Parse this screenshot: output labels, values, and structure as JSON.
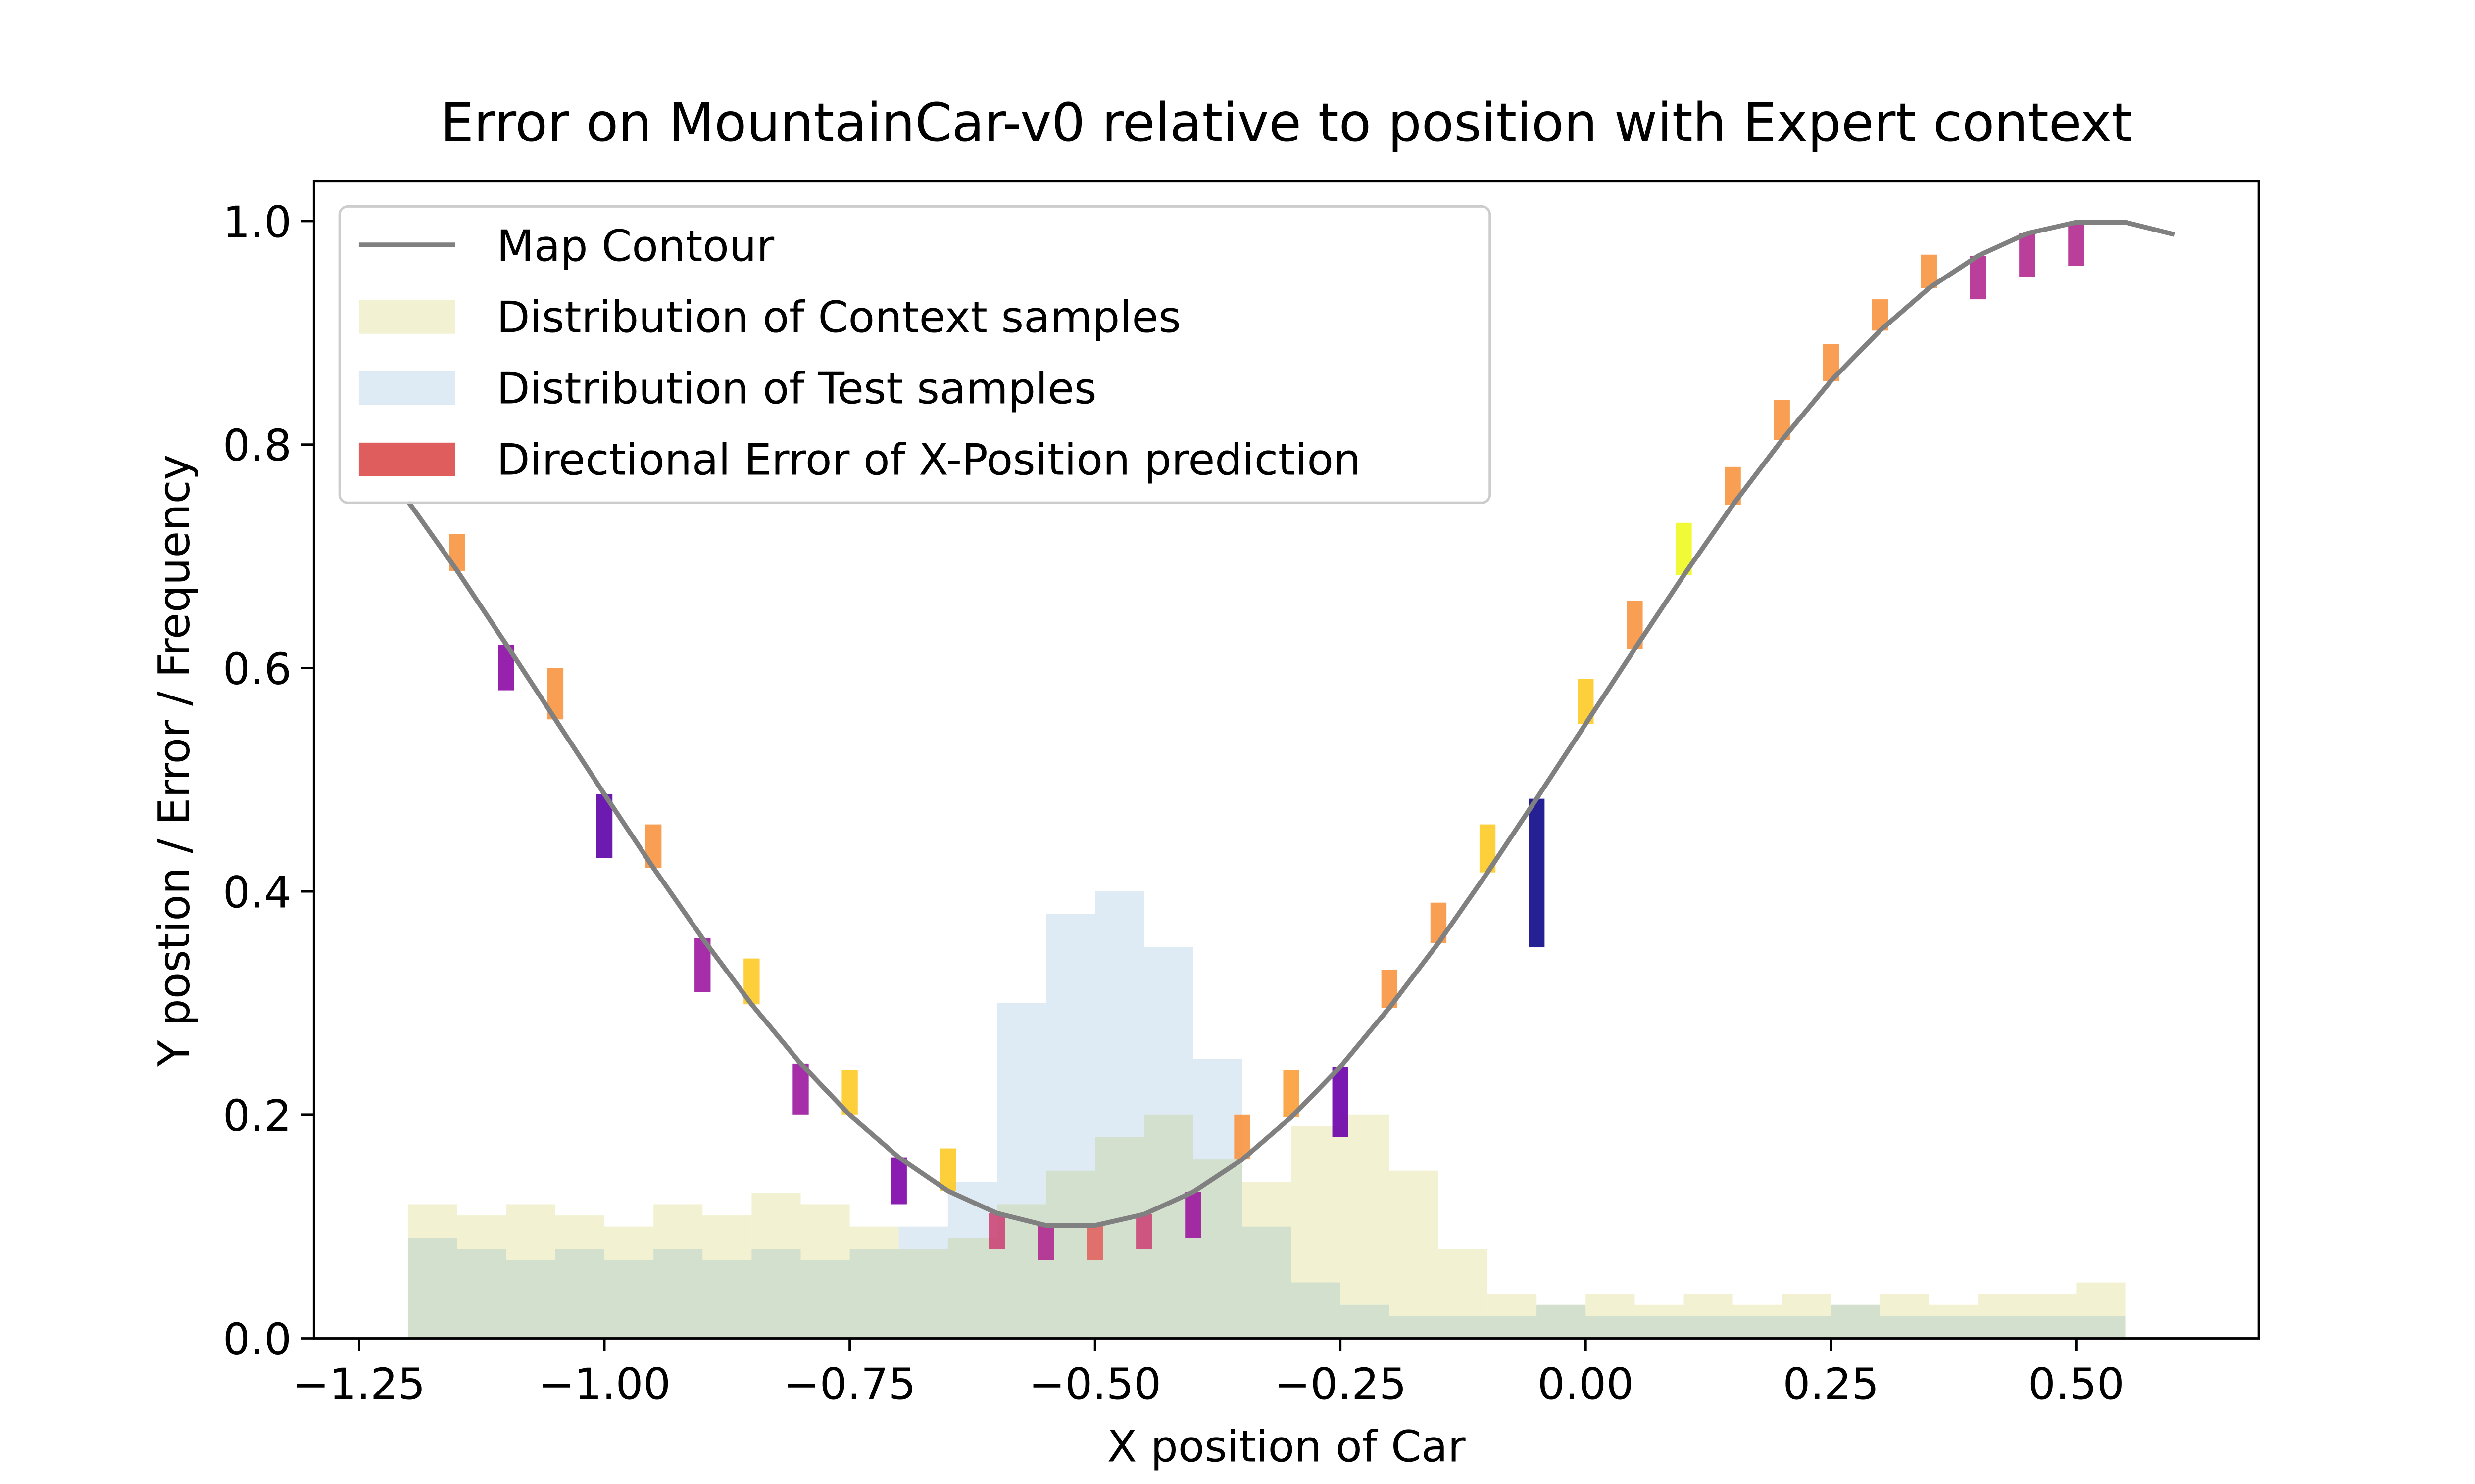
{
  "chart_data": {
    "type": "composite",
    "title": "Error on MountainCar-v0 relative to position with Expert context",
    "x_label": "X position of Car",
    "y_label": "Y postion / Error / Frequency",
    "xlim": [
      -1.296,
      0.686
    ],
    "ylim": [
      0,
      1.036
    ],
    "xticks": [
      {
        "value": -1.25,
        "label": "−1.25"
      },
      {
        "value": -1.0,
        "label": "−1.00"
      },
      {
        "value": -0.75,
        "label": "−0.75"
      },
      {
        "value": -0.5,
        "label": "−0.50"
      },
      {
        "value": -0.25,
        "label": "−0.25"
      },
      {
        "value": 0,
        "label": "0.00"
      },
      {
        "value": 0.25,
        "label": "0.25"
      },
      {
        "value": 0.5,
        "label": "0.50"
      }
    ],
    "yticks": [
      {
        "value": 0,
        "label": "0.0"
      },
      {
        "value": 0.2,
        "label": "0.2"
      },
      {
        "value": 0.4,
        "label": "0.4"
      },
      {
        "value": 0.6,
        "label": "0.6"
      },
      {
        "value": 0.8,
        "label": "0.8"
      },
      {
        "value": 1.0,
        "label": "1.0"
      }
    ],
    "legend_position": "upper left",
    "contour": {
      "name": "Map Contour",
      "color": "#808080",
      "x": [
        -1.2,
        -1.15,
        -1.1,
        -1.05,
        -1.0,
        -0.95,
        -0.9,
        -0.85,
        -0.8,
        -0.75,
        -0.7,
        -0.65,
        -0.6,
        -0.55,
        -0.5,
        -0.45,
        -0.4,
        -0.35,
        -0.3,
        -0.25,
        -0.2,
        -0.15,
        -0.1,
        -0.05,
        0,
        0.05,
        0.1,
        0.15,
        0.2,
        0.25,
        0.3,
        0.35,
        0.4,
        0.45,
        0.5,
        0.55,
        0.6
      ],
      "values": [
        0.749,
        0.687,
        0.621,
        0.554,
        0.487,
        0.421,
        0.358,
        0.299,
        0.246,
        0.2,
        0.162,
        0.132,
        0.112,
        0.101,
        0.101,
        0.111,
        0.131,
        0.16,
        0.198,
        0.243,
        0.296,
        0.354,
        0.417,
        0.483,
        0.55,
        0.617,
        0.683,
        0.746,
        0.804,
        0.857,
        0.902,
        0.94,
        0.969,
        0.989,
        0.999,
        0.999,
        0.988
      ]
    },
    "histograms": [
      {
        "name": "Distribution of Context samples",
        "color": "#bcbd22",
        "opacity": 0.2,
        "bins": [
          -1.2,
          -1.15,
          -1.1,
          -1.05,
          -1.0,
          -0.95,
          -0.9,
          -0.85,
          -0.8,
          -0.75,
          -0.7,
          -0.65,
          -0.6,
          -0.55,
          -0.5,
          -0.45,
          -0.4,
          -0.35,
          -0.3,
          -0.25,
          -0.2,
          -0.15,
          -0.1,
          -0.05,
          0,
          0.05,
          0.1,
          0.15,
          0.2,
          0.25,
          0.3,
          0.35,
          0.4,
          0.45,
          0.5,
          0.55
        ],
        "values": [
          0.12,
          0.11,
          0.12,
          0.11,
          0.1,
          0.12,
          0.11,
          0.13,
          0.12,
          0.1,
          0.08,
          0.09,
          0.12,
          0.15,
          0.18,
          0.2,
          0.16,
          0.14,
          0.19,
          0.2,
          0.15,
          0.08,
          0.04,
          0.03,
          0.04,
          0.03,
          0.04,
          0.03,
          0.04,
          0.03,
          0.04,
          0.03,
          0.04,
          0.04,
          0.05
        ]
      },
      {
        "name": "Distribution of Test samples",
        "color": "#1f77b4",
        "opacity": 0.15,
        "bins": [
          -1.2,
          -1.15,
          -1.1,
          -1.05,
          -1.0,
          -0.95,
          -0.9,
          -0.85,
          -0.8,
          -0.75,
          -0.7,
          -0.65,
          -0.6,
          -0.55,
          -0.5,
          -0.45,
          -0.4,
          -0.35,
          -0.3,
          -0.25,
          -0.2,
          -0.15,
          -0.1,
          -0.05,
          0,
          0.05,
          0.1,
          0.15,
          0.2,
          0.25,
          0.3,
          0.35,
          0.4,
          0.45,
          0.5,
          0.55
        ],
        "values": [
          0.09,
          0.08,
          0.07,
          0.08,
          0.07,
          0.08,
          0.07,
          0.08,
          0.07,
          0.08,
          0.1,
          0.14,
          0.3,
          0.38,
          0.4,
          0.35,
          0.25,
          0.1,
          0.05,
          0.03,
          0.02,
          0.02,
          0.02,
          0.03,
          0.02,
          0.02,
          0.02,
          0.02,
          0.02,
          0.03,
          0.02,
          0.02,
          0.02,
          0.02,
          0.02
        ]
      }
    ],
    "errors": {
      "name": "Directional Error of X-Position prediction",
      "color": "#d62728",
      "x": [
        -1.15,
        -1.1,
        -1.05,
        -1.0,
        -0.95,
        -0.9,
        -0.85,
        -0.8,
        -0.75,
        -0.7,
        -0.65,
        -0.6,
        -0.55,
        -0.5,
        -0.45,
        -0.4,
        -0.35,
        -0.3,
        -0.25,
        -0.2,
        -0.15,
        -0.1,
        -0.05,
        0,
        0.05,
        0.1,
        0.15,
        0.2,
        0.25,
        0.3,
        0.35,
        0.4,
        0.45,
        0.5
      ],
      "bottom": [
        0.687,
        0.58,
        0.554,
        0.43,
        0.421,
        0.31,
        0.299,
        0.2,
        0.2,
        0.12,
        0.132,
        0.08,
        0.07,
        0.07,
        0.08,
        0.09,
        0.16,
        0.198,
        0.18,
        0.296,
        0.354,
        0.417,
        0.35,
        0.55,
        0.617,
        0.683,
        0.746,
        0.804,
        0.857,
        0.902,
        0.94,
        0.93,
        0.95,
        0.96
      ],
      "top": [
        0.72,
        0.621,
        0.6,
        0.487,
        0.46,
        0.358,
        0.34,
        0.246,
        0.24,
        0.162,
        0.17,
        0.112,
        0.101,
        0.101,
        0.111,
        0.131,
        0.2,
        0.24,
        0.243,
        0.33,
        0.39,
        0.46,
        0.483,
        0.59,
        0.66,
        0.73,
        0.78,
        0.84,
        0.89,
        0.93,
        0.97,
        0.969,
        0.989,
        0.999
      ],
      "colors": [
        "#f89540",
        "#8b0aa5",
        "#f89540",
        "#5c01a6",
        "#f89540",
        "#9c179e",
        "#fdca26",
        "#9c179e",
        "#fdca26",
        "#7e03a8",
        "#fdca26",
        "#cc4778",
        "#b12a90",
        "#e16462",
        "#cc4778",
        "#9c179e",
        "#f89540",
        "#fb9f3a",
        "#6a00a8",
        "#f89540",
        "#f89540",
        "#fdca26",
        "#0d0887",
        "#fdca26",
        "#f89540",
        "#f0f921",
        "#f89540",
        "#f89540",
        "#f89540",
        "#f89540",
        "#f89540",
        "#b12a90",
        "#b12a90",
        "#b12a90"
      ]
    }
  }
}
